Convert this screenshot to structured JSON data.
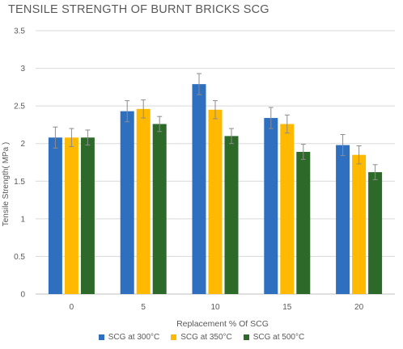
{
  "chart_data": {
    "type": "bar",
    "title": "TENSILE STRENGTH OF BURNT BRICKS SCG",
    "xlabel": "Replacement  % Of SCG",
    "ylabel": "Tensile Strength( MPa )",
    "categories": [
      "0",
      "5",
      "10",
      "15",
      "20"
    ],
    "ylim": [
      0,
      3.5
    ],
    "yticks": [
      "0",
      "0.5",
      "1",
      "1.5",
      "2",
      "2.5",
      "3",
      "3.5"
    ],
    "grid": true,
    "legend_position": "bottom",
    "series": [
      {
        "name": "SCG at 300°C",
        "color": "#2e6fc0",
        "values": [
          2.08,
          2.43,
          2.79,
          2.34,
          1.98
        ],
        "errors": [
          0.14,
          0.14,
          0.14,
          0.14,
          0.14
        ]
      },
      {
        "name": "SCG at 350°C",
        "color": "#ffb900",
        "values": [
          2.08,
          2.46,
          2.45,
          2.26,
          1.85
        ],
        "errors": [
          0.12,
          0.12,
          0.12,
          0.12,
          0.12
        ]
      },
      {
        "name": "SCG at 500°C",
        "color": "#2d6a2a",
        "values": [
          2.08,
          2.26,
          2.1,
          1.89,
          1.62
        ],
        "errors": [
          0.1,
          0.1,
          0.1,
          0.1,
          0.1
        ]
      }
    ]
  }
}
